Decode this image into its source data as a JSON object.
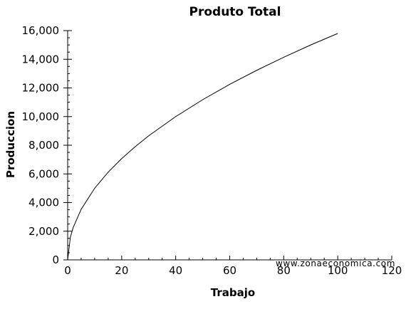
{
  "chart_data": {
    "type": "line",
    "title": "Produto Total",
    "xlabel": "Trabajo",
    "ylabel": "Produccion",
    "xlim": [
      0,
      120
    ],
    "ylim": [
      0,
      16000
    ],
    "xticks": [
      0,
      20,
      40,
      60,
      80,
      100,
      120
    ],
    "yticks": [
      0,
      2000,
      4000,
      6000,
      8000,
      10000,
      12000,
      14000,
      16000
    ],
    "xtick_labels": [
      "0",
      "20",
      "40",
      "60",
      "80",
      "100",
      "120"
    ],
    "ytick_labels": [
      "0",
      "2,000",
      "4,000",
      "6,000",
      "8,000",
      "10,000",
      "12,000",
      "14,000",
      "16,000"
    ],
    "x_minor_step": 5,
    "y_minor_step": 500,
    "grid": false,
    "series": [
      {
        "color": "#000000",
        "x": [
          0,
          1,
          2,
          5,
          10,
          15,
          20,
          25,
          30,
          40,
          50,
          60,
          70,
          80,
          90,
          100
        ],
        "y": [
          0,
          1580,
          2240,
          3530,
          5000,
          6120,
          7070,
          7900,
          8660,
          10000,
          11180,
          12250,
          13230,
          14140,
          15000,
          15800
        ]
      }
    ],
    "watermark": "www.zonaeconomica.com"
  }
}
